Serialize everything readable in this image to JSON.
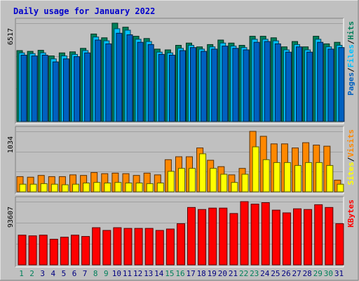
{
  "chart_data": {
    "type": "bar",
    "title": "Daily usage for January 2022",
    "colors": {
      "background": "#c0c0c0",
      "title": "#0000cc",
      "hits": "#00805a",
      "files": "#00c0ff",
      "pages": "#0060c0",
      "visits": "#ff8800",
      "sites": "#ffff00",
      "kbytes": "#ff0000",
      "weekend_day": "#00805a",
      "weekday": "#000080",
      "grid": "#a0a0a0"
    },
    "categories": [
      "1",
      "2",
      "3",
      "4",
      "5",
      "6",
      "7",
      "8",
      "9",
      "10",
      "11",
      "12",
      "13",
      "14",
      "15",
      "16",
      "17",
      "18",
      "19",
      "20",
      "21",
      "22",
      "23",
      "24",
      "25",
      "26",
      "27",
      "28",
      "29",
      "30",
      "31"
    ],
    "weekend_days": [
      "1",
      "2",
      "8",
      "9",
      "15",
      "16",
      "22",
      "23",
      "29",
      "30"
    ],
    "panels": [
      {
        "id": "hits-files-pages",
        "ymax_label": "6517",
        "ymax": 6517,
        "legend": [
          "Pages",
          "/",
          "Files",
          "/",
          "Hits"
        ],
        "series": [
          {
            "name": "Hits",
            "values": [
              4700,
              4650,
              4720,
              4350,
              4550,
              4620,
              4850,
              5800,
              5550,
              6517,
              6250,
              5650,
              5500,
              4800,
              4750,
              5050,
              5200,
              4950,
              5100,
              5400,
              5200,
              5050,
              5650,
              5650,
              5550,
              4950,
              5300,
              4950,
              5650,
              5150,
              5250
            ]
          },
          {
            "name": "Files",
            "values": [
              4550,
              4500,
              4550,
              4150,
              4350,
              4450,
              4700,
              5600,
              5350,
              6150,
              6050,
              5450,
              5300,
              4600,
              4550,
              4850,
              5050,
              4800,
              4950,
              5200,
              5000,
              4900,
              5450,
              5450,
              5350,
              4750,
              5100,
              4750,
              5450,
              4950,
              5050
            ]
          },
          {
            "name": "Pages",
            "values": [
              4400,
              4350,
              4400,
              3950,
              4150,
              4300,
              4550,
              5400,
              5150,
              5850,
              5750,
              5250,
              5100,
              4450,
              4400,
              4700,
              4900,
              4650,
              4800,
              5000,
              4850,
              4750,
              5250,
              5300,
              5150,
              4600,
              4950,
              4600,
              5250,
              4800,
              4900
            ]
          }
        ]
      },
      {
        "id": "visits-sites",
        "ymax_label": "1034",
        "ymax": 1034,
        "legend": [
          "Sites",
          "/",
          "Visits"
        ],
        "series": [
          {
            "name": "Visits",
            "values": [
              260,
              250,
              280,
              260,
              260,
              290,
              280,
              330,
              310,
              320,
              310,
              280,
              320,
              290,
              550,
              600,
              600,
              750,
              540,
              430,
              290,
              400,
              1034,
              950,
              820,
              820,
              750,
              840,
              800,
              780,
              200
            ]
          },
          {
            "name": "Sites",
            "values": [
              130,
              130,
              140,
              130,
              120,
              130,
              150,
              160,
              150,
              160,
              150,
              150,
              140,
              150,
              350,
              400,
              400,
              650,
              400,
              300,
              160,
              300,
              770,
              550,
              500,
              500,
              450,
              500,
              500,
              450,
              130
            ]
          }
        ]
      },
      {
        "id": "kbytes",
        "ymax_label": "93607",
        "ymax": 93607,
        "legend": [
          "KBytes"
        ],
        "series": [
          {
            "name": "KBytes",
            "values": [
              44000,
              43000,
              44000,
              38000,
              41000,
              44000,
              42000,
              55000,
              51000,
              55000,
              54000,
              54000,
              54000,
              51000,
              53000,
              61000,
              85000,
              82000,
              84000,
              84000,
              76000,
              93607,
              90000,
              92000,
              81000,
              77000,
              83000,
              82000,
              89000,
              85000,
              61000
            ]
          }
        ]
      }
    ]
  }
}
